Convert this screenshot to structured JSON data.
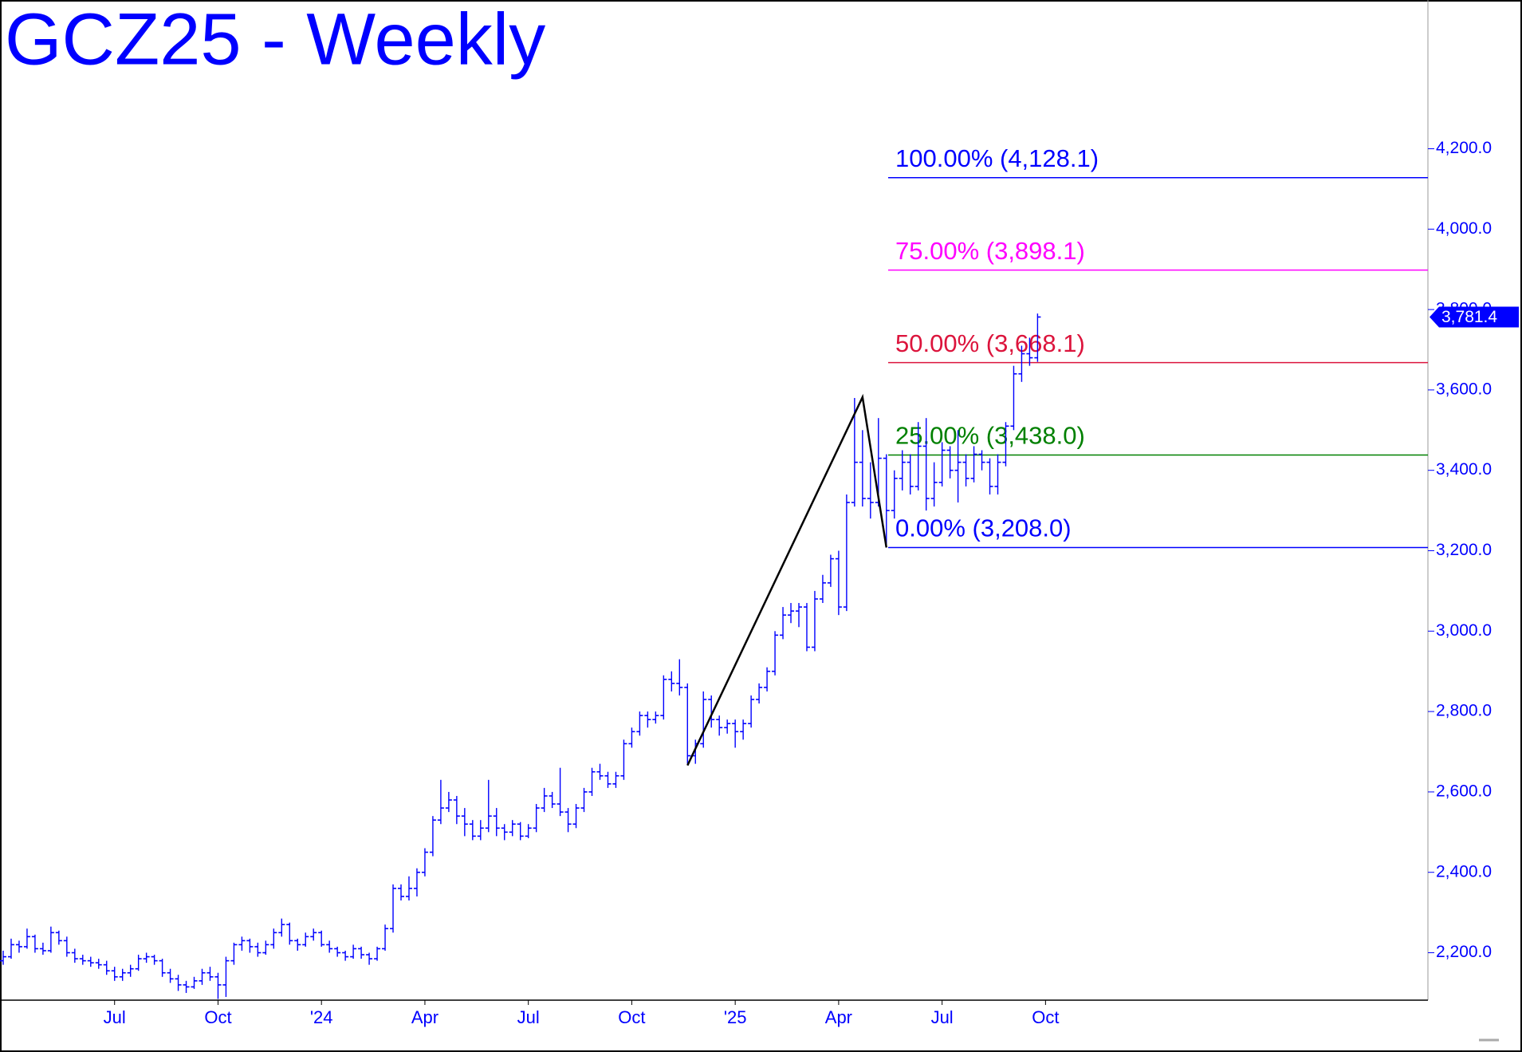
{
  "chart_data": {
    "type": "ohlc",
    "title": "GCZ25 - Weekly",
    "color": "#0000ff",
    "categories": [
      null,
      null,
      null,
      null,
      null,
      null,
      null,
      null,
      null,
      null,
      null,
      null,
      null,
      null,
      "Jul",
      null,
      null,
      null,
      null,
      null,
      null,
      null,
      null,
      null,
      null,
      null,
      null,
      "Oct",
      null,
      null,
      null,
      null,
      null,
      null,
      null,
      null,
      null,
      null,
      null,
      null,
      "'24",
      null,
      null,
      null,
      null,
      null,
      null,
      null,
      null,
      null,
      null,
      null,
      null,
      "Apr",
      null,
      null,
      null,
      null,
      null,
      null,
      null,
      null,
      null,
      null,
      null,
      null,
      "Jul",
      null,
      null,
      null,
      null,
      null,
      null,
      null,
      null,
      null,
      null,
      null,
      null,
      "Oct",
      null,
      null,
      null,
      null,
      null,
      null,
      null,
      null,
      null,
      null,
      null,
      null,
      "'25",
      null,
      null,
      null,
      null,
      null,
      null,
      null,
      null,
      null,
      null,
      null,
      null,
      "Apr",
      null,
      null,
      null,
      null,
      null,
      null,
      null,
      null,
      null,
      null,
      null,
      null,
      "Jul",
      null,
      null,
      null,
      null,
      null,
      null,
      null,
      null,
      null,
      null,
      null,
      null,
      "Oct"
    ],
    "open": [
      2180,
      2190,
      2220,
      2215,
      2240,
      2210,
      2205,
      2250,
      2230,
      2200,
      2185,
      2180,
      2175,
      2170,
      2155,
      2140,
      2150,
      2160,
      2185,
      2190,
      2180,
      2150,
      2135,
      2120,
      2115,
      2130,
      2150,
      2140,
      2120,
      2180,
      2220,
      2230,
      2215,
      2200,
      2220,
      2250,
      2270,
      2230,
      2220,
      2240,
      2250,
      2220,
      2210,
      2200,
      2190,
      2210,
      2195,
      2185,
      2210,
      2260,
      2360,
      2340,
      2360,
      2400,
      2450,
      2530,
      2560,
      2580,
      2540,
      2520,
      2490,
      2510,
      2540,
      2510,
      2500,
      2520,
      2490,
      2510,
      2560,
      2590,
      2570,
      2550,
      2520,
      2560,
      2600,
      2650,
      2640,
      2620,
      2640,
      2720,
      2750,
      2790,
      2780,
      2790,
      2880,
      2870,
      2860,
      2690,
      2720,
      2830,
      2780,
      2760,
      2770,
      2750,
      2770,
      2830,
      2860,
      2900,
      2990,
      3040,
      3050,
      3060,
      2960,
      3080,
      3120,
      3180,
      3060,
      3320,
      3420,
      3330,
      3320,
      3430,
      3300,
      3380,
      3420,
      3360,
      3460,
      3330,
      3370,
      3450,
      3400,
      3420,
      3380,
      3440,
      3420,
      3360,
      3420,
      3510,
      3640,
      3690,
      3680,
      null
    ],
    "high": [
      2205,
      2235,
      2230,
      2260,
      2245,
      2225,
      2265,
      2255,
      2240,
      2210,
      2195,
      2190,
      2185,
      2180,
      2165,
      2160,
      2170,
      2195,
      2200,
      2195,
      2185,
      2160,
      2145,
      2130,
      2140,
      2160,
      2165,
      2150,
      2190,
      2225,
      2240,
      2235,
      2225,
      2230,
      2260,
      2285,
      2275,
      2235,
      2250,
      2260,
      2255,
      2230,
      2215,
      2205,
      2220,
      2215,
      2200,
      2215,
      2270,
      2370,
      2370,
      2390,
      2410,
      2460,
      2540,
      2630,
      2600,
      2590,
      2560,
      2530,
      2530,
      2630,
      2560,
      2520,
      2530,
      2525,
      2520,
      2570,
      2610,
      2600,
      2660,
      2560,
      2570,
      2610,
      2660,
      2670,
      2650,
      2650,
      2730,
      2760,
      2800,
      2800,
      2800,
      2890,
      2900,
      2930,
      2870,
      2730,
      2850,
      2840,
      2790,
      2780,
      2780,
      2780,
      2840,
      2870,
      2910,
      3000,
      3060,
      3070,
      3070,
      3070,
      3100,
      3140,
      3190,
      3200,
      3340,
      3580,
      3500,
      3420,
      3530,
      3440,
      3400,
      3450,
      3440,
      3520,
      3530,
      3420,
      3470,
      3460,
      3500,
      3440,
      3460,
      3450,
      3430,
      3440,
      3520,
      3660,
      3710,
      3730,
      3790,
      null
    ],
    "low": [
      2170,
      2185,
      2200,
      2210,
      2200,
      2195,
      2200,
      2220,
      2190,
      2175,
      2170,
      2165,
      2160,
      2145,
      2130,
      2130,
      2140,
      2155,
      2175,
      2170,
      2140,
      2125,
      2105,
      2100,
      2110,
      2120,
      2130,
      2085,
      2090,
      2170,
      2205,
      2200,
      2190,
      2195,
      2210,
      2240,
      2220,
      2205,
      2215,
      2230,
      2215,
      2200,
      2190,
      2180,
      2185,
      2185,
      2170,
      2180,
      2205,
      2250,
      2330,
      2330,
      2340,
      2390,
      2440,
      2520,
      2550,
      2520,
      2490,
      2480,
      2480,
      2500,
      2490,
      2480,
      2490,
      2480,
      2485,
      2500,
      2550,
      2560,
      2540,
      2500,
      2510,
      2550,
      2590,
      2630,
      2610,
      2610,
      2630,
      2710,
      2740,
      2760,
      2770,
      2780,
      2850,
      2840,
      2670,
      2670,
      2710,
      2760,
      2740,
      2745,
      2710,
      2730,
      2760,
      2820,
      2850,
      2890,
      2980,
      3020,
      3010,
      2950,
      2950,
      3070,
      3110,
      3040,
      3050,
      3310,
      3310,
      3280,
      3310,
      3208,
      3280,
      3350,
      3340,
      3350,
      3300,
      3310,
      3360,
      3380,
      3320,
      3360,
      3370,
      3400,
      3340,
      3340,
      3410,
      3500,
      3620,
      3660,
      3670,
      null
    ],
    "close": [
      2190,
      2220,
      2215,
      2240,
      2210,
      2205,
      2250,
      2230,
      2200,
      2185,
      2180,
      2175,
      2170,
      2155,
      2140,
      2150,
      2160,
      2185,
      2190,
      2180,
      2150,
      2135,
      2120,
      2115,
      2130,
      2150,
      2140,
      2120,
      2180,
      2220,
      2230,
      2215,
      2200,
      2220,
      2250,
      2270,
      2230,
      2220,
      2240,
      2250,
      2220,
      2210,
      2200,
      2190,
      2210,
      2195,
      2185,
      2210,
      2260,
      2360,
      2340,
      2360,
      2400,
      2450,
      2530,
      2560,
      2580,
      2540,
      2520,
      2490,
      2510,
      2540,
      2510,
      2500,
      2520,
      2490,
      2510,
      2560,
      2590,
      2570,
      2550,
      2520,
      2560,
      2600,
      2650,
      2640,
      2620,
      2640,
      2720,
      2750,
      2790,
      2780,
      2790,
      2880,
      2870,
      2860,
      2690,
      2720,
      2830,
      2780,
      2760,
      2770,
      2750,
      2770,
      2830,
      2860,
      2900,
      2990,
      3040,
      3050,
      3060,
      2960,
      3080,
      3120,
      3180,
      3060,
      3320,
      3420,
      3330,
      3320,
      3430,
      3300,
      3380,
      3420,
      3360,
      3460,
      3330,
      3370,
      3450,
      3400,
      3420,
      3380,
      3440,
      3420,
      3360,
      3420,
      3510,
      3640,
      3690,
      3680,
      3781.4,
      null
    ],
    "ylim": [
      2082,
      4570
    ],
    "yticks": [
      {
        "value": 2200,
        "label": "2,200.0"
      },
      {
        "value": 2400,
        "label": "2,400.0"
      },
      {
        "value": 2600,
        "label": "2,600.0"
      },
      {
        "value": 2800,
        "label": "2,800.0"
      },
      {
        "value": 3000,
        "label": "3,000.0"
      },
      {
        "value": 3200,
        "label": "3,200.0"
      },
      {
        "value": 3400,
        "label": "3,400.0"
      },
      {
        "value": 3600,
        "label": "3,600.0"
      },
      {
        "value": 3800,
        "label": "3,800.0"
      },
      {
        "value": 4000,
        "label": "4,000.0"
      },
      {
        "value": 4200,
        "label": "4,200.0"
      }
    ],
    "levels": [
      {
        "value": 4128.1,
        "label": "100.00% (4,128.1)",
        "color": "#0000ff"
      },
      {
        "value": 3898.1,
        "label": "75.00% (3,898.1)",
        "color": "#ff00ff"
      },
      {
        "value": 3668.1,
        "label": "50.00% (3,668.1)",
        "color": "#dc143c"
      },
      {
        "value": 3438.0,
        "label": "25.00% (3,438.0)",
        "color": "#008000"
      },
      {
        "value": 3208.0,
        "label": "0.00% (3,208.0)",
        "color": "#0000ff"
      }
    ],
    "abc_line": {
      "color": "#000000",
      "values": [
        2666,
        3582,
        3208
      ]
    },
    "last_price": {
      "value": 3781.4,
      "label": "3,781.4"
    }
  }
}
